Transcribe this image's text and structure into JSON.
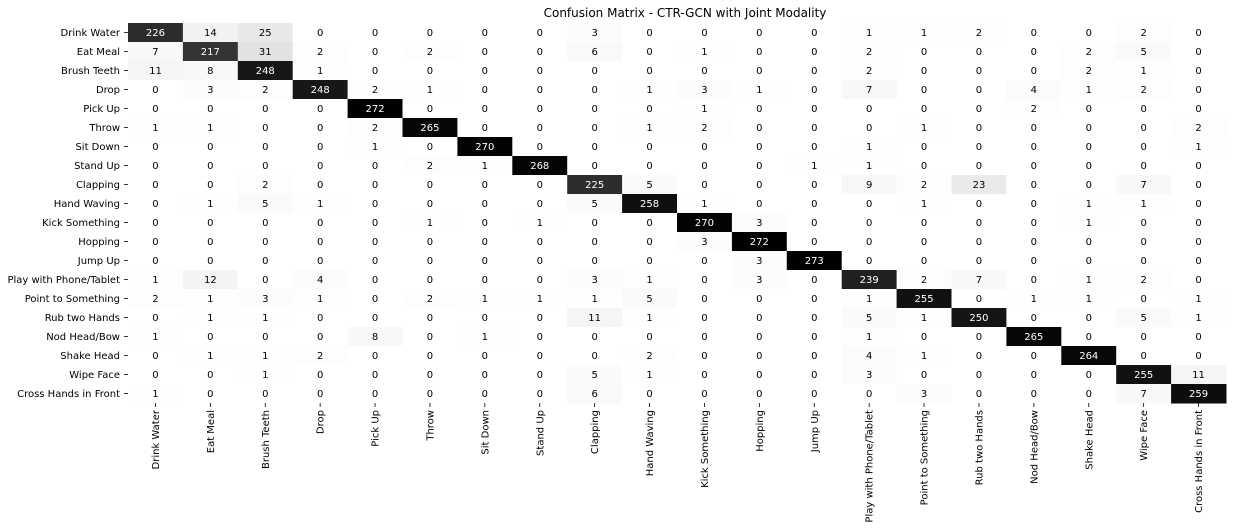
{
  "chart_data": {
    "type": "heatmap",
    "title": "Confusion Matrix - CTR-GCN with Joint Modality",
    "xlabel": "",
    "ylabel": "",
    "labels": [
      "Drink Water",
      "Eat Meal",
      "Brush Teeth",
      "Drop",
      "Pick Up",
      "Throw",
      "Sit Down",
      "Stand Up",
      "Clapping",
      "Hand Waving",
      "Kick Something",
      "Hopping",
      "Jump Up",
      "Play with Phone/Tablet",
      "Point to Something",
      "Rub two Hands",
      "Nod Head/Bow",
      "Shake Head",
      "Wipe Face",
      "Cross Hands in Front"
    ],
    "matrix": [
      [
        226,
        14,
        25,
        0,
        0,
        0,
        0,
        0,
        3,
        0,
        0,
        0,
        0,
        1,
        1,
        2,
        0,
        0,
        2,
        0
      ],
      [
        7,
        217,
        31,
        2,
        0,
        2,
        0,
        0,
        6,
        0,
        1,
        0,
        0,
        2,
        0,
        0,
        0,
        2,
        5,
        0
      ],
      [
        11,
        8,
        248,
        1,
        0,
        0,
        0,
        0,
        0,
        0,
        0,
        0,
        0,
        2,
        0,
        0,
        0,
        2,
        1,
        0
      ],
      [
        0,
        3,
        2,
        248,
        2,
        1,
        0,
        0,
        0,
        1,
        3,
        1,
        0,
        7,
        0,
        0,
        4,
        1,
        2,
        0
      ],
      [
        0,
        0,
        0,
        0,
        272,
        0,
        0,
        0,
        0,
        0,
        1,
        0,
        0,
        0,
        0,
        0,
        2,
        0,
        0,
        0
      ],
      [
        1,
        1,
        0,
        0,
        2,
        265,
        0,
        0,
        0,
        1,
        2,
        0,
        0,
        0,
        1,
        0,
        0,
        0,
        0,
        2
      ],
      [
        0,
        0,
        0,
        0,
        1,
        0,
        270,
        0,
        0,
        0,
        0,
        0,
        0,
        1,
        0,
        0,
        0,
        0,
        0,
        1
      ],
      [
        0,
        0,
        0,
        0,
        0,
        2,
        1,
        268,
        0,
        0,
        0,
        0,
        1,
        1,
        0,
        0,
        0,
        0,
        0,
        0
      ],
      [
        0,
        0,
        2,
        0,
        0,
        0,
        0,
        0,
        225,
        5,
        0,
        0,
        0,
        9,
        2,
        23,
        0,
        0,
        7,
        0
      ],
      [
        0,
        1,
        5,
        1,
        0,
        0,
        0,
        0,
        5,
        258,
        1,
        0,
        0,
        0,
        1,
        0,
        0,
        1,
        1,
        0
      ],
      [
        0,
        0,
        0,
        0,
        0,
        1,
        0,
        1,
        0,
        0,
        270,
        3,
        0,
        0,
        0,
        0,
        0,
        1,
        0,
        0
      ],
      [
        0,
        0,
        0,
        0,
        0,
        0,
        0,
        0,
        0,
        0,
        3,
        272,
        0,
        0,
        0,
        0,
        0,
        0,
        0,
        0
      ],
      [
        0,
        0,
        0,
        0,
        0,
        0,
        0,
        0,
        0,
        0,
        0,
        3,
        273,
        0,
        0,
        0,
        0,
        0,
        0,
        0
      ],
      [
        1,
        12,
        0,
        4,
        0,
        0,
        0,
        0,
        3,
        1,
        0,
        3,
        0,
        239,
        2,
        7,
        0,
        1,
        2,
        0
      ],
      [
        2,
        1,
        3,
        1,
        0,
        2,
        1,
        1,
        1,
        5,
        0,
        0,
        0,
        1,
        255,
        0,
        1,
        1,
        0,
        1
      ],
      [
        0,
        1,
        1,
        0,
        0,
        0,
        0,
        0,
        11,
        1,
        0,
        0,
        0,
        5,
        1,
        250,
        0,
        0,
        5,
        1
      ],
      [
        1,
        0,
        0,
        0,
        8,
        0,
        1,
        0,
        0,
        0,
        0,
        0,
        0,
        1,
        0,
        0,
        265,
        0,
        0,
        0
      ],
      [
        0,
        1,
        1,
        2,
        0,
        0,
        0,
        0,
        0,
        2,
        0,
        0,
        0,
        4,
        1,
        0,
        0,
        264,
        0,
        0
      ],
      [
        0,
        0,
        1,
        0,
        0,
        0,
        0,
        0,
        5,
        1,
        0,
        0,
        0,
        3,
        0,
        0,
        0,
        0,
        255,
        11
      ],
      [
        1,
        0,
        0,
        0,
        0,
        0,
        0,
        0,
        6,
        0,
        0,
        0,
        0,
        0,
        3,
        0,
        0,
        0,
        7,
        259
      ]
    ],
    "vmin": 0,
    "vmax": 273,
    "colormap": "greys",
    "colorbar": false,
    "grid": false
  }
}
